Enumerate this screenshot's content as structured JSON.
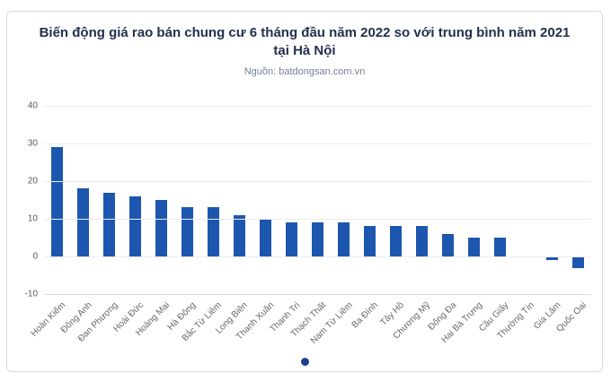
{
  "chart_data": {
    "type": "bar",
    "title": "Biến động giá rao bán chung cư 6 tháng đầu năm 2022 so với trung bình năm 2021 tại Hà Nội",
    "source": "Nguồn: batdongsan.com.vn",
    "categories": [
      "Hoàn Kiếm",
      "Đông Anh",
      "Đan Phượng",
      "Hoài Đức",
      "Hoàng Mai",
      "Hà Đông",
      "Bắc Từ Liêm",
      "Long Biên",
      "Thanh Xuân",
      "Thanh Trì",
      "Thạch Thất",
      "Nam Từ Liêm",
      "Ba Đình",
      "Tây Hồ",
      "Chương Mỹ",
      "Đống Đa",
      "Hai Bà Trưng",
      "Cầu Giấy",
      "Thường Tín",
      "Gia Lâm",
      "Quốc Oai"
    ],
    "values": [
      29,
      18,
      17,
      16,
      15,
      13,
      13,
      11,
      10,
      9,
      9,
      9,
      8,
      8,
      8,
      6,
      5,
      5,
      0,
      -1,
      -3
    ],
    "xlabel": "",
    "ylabel": "",
    "ylim": [
      -10,
      40
    ],
    "yticks": [
      40,
      30,
      20,
      10,
      0,
      -10
    ],
    "grid": true,
    "legend": "none",
    "bar_color": "#1d56ae",
    "xlabel_rotation_deg": -45
  },
  "pagination": {
    "dot_count": 1,
    "active_dot_color": "#1e418e"
  }
}
